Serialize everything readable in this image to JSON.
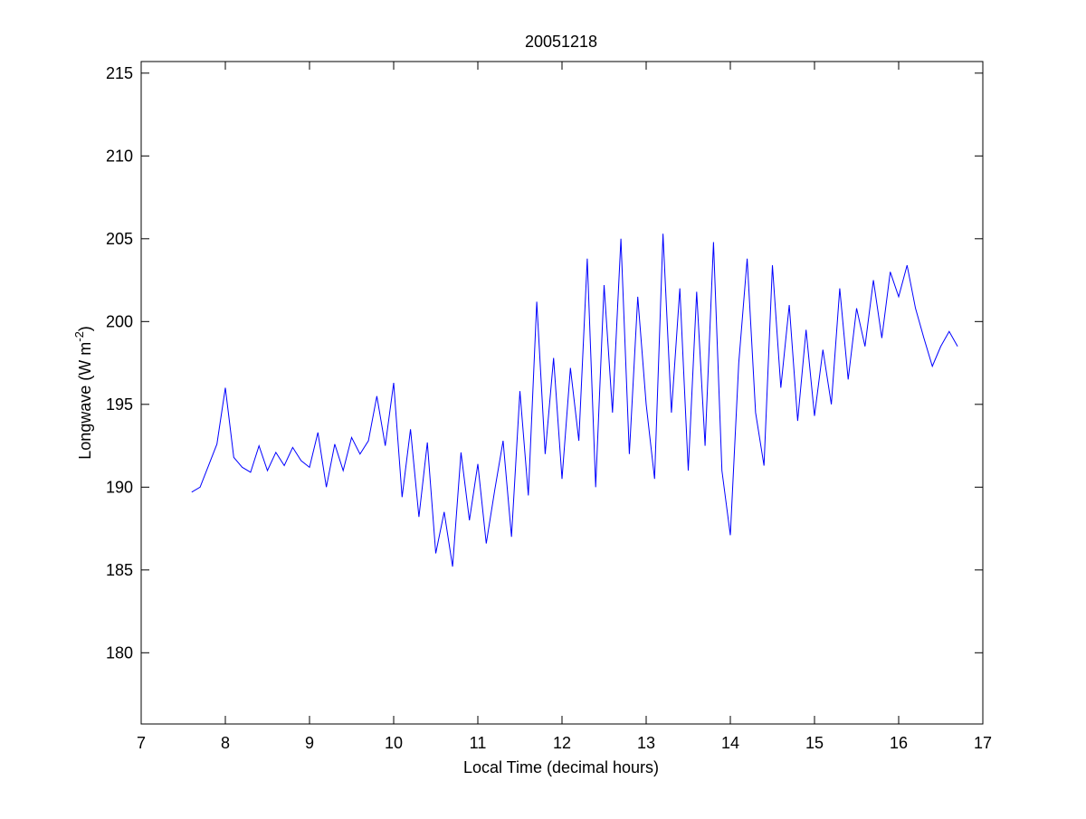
{
  "chart_data": {
    "type": "line",
    "title": "20051218",
    "xlabel": "Local Time (decimal hours)",
    "ylabel": "Longwave (W m",
    "ylabel_sup": "-2",
    "ylabel_end": ")",
    "xlim": [
      7,
      17
    ],
    "xticks": [
      7,
      8,
      9,
      10,
      11,
      12,
      13,
      14,
      15,
      16,
      17
    ],
    "ylim": [
      175.7,
      215.7
    ],
    "yticks": [
      180,
      185,
      190,
      195,
      200,
      205,
      210,
      215
    ],
    "grid": false,
    "x": [
      7.6,
      7.7,
      7.8,
      7.9,
      8.0,
      8.1,
      8.2,
      8.3,
      8.4,
      8.5,
      8.6,
      8.7,
      8.8,
      8.9,
      9.0,
      9.1,
      9.2,
      9.3,
      9.4,
      9.5,
      9.6,
      9.7,
      9.8,
      9.9,
      10.0,
      10.1,
      10.2,
      10.3,
      10.4,
      10.5,
      10.6,
      10.7,
      10.8,
      10.9,
      11.0,
      11.1,
      11.2,
      11.3,
      11.4,
      11.5,
      11.6,
      11.7,
      11.8,
      11.9,
      12.0,
      12.1,
      12.2,
      12.3,
      12.4,
      12.5,
      12.6,
      12.7,
      12.8,
      12.9,
      13.0,
      13.1,
      13.2,
      13.3,
      13.4,
      13.5,
      13.6,
      13.7,
      13.8,
      13.9,
      14.0,
      14.1,
      14.2,
      14.3,
      14.4,
      14.5,
      14.6,
      14.7,
      14.8,
      14.9,
      15.0,
      15.1,
      15.2,
      15.3,
      15.4,
      15.5,
      15.6,
      15.7,
      15.8,
      15.9,
      16.0,
      16.1,
      16.2,
      16.3,
      16.4,
      16.5,
      16.6,
      16.7
    ],
    "series": [
      {
        "color": "#0000ff",
        "values": [
          189.7,
          190.0,
          191.3,
          192.6,
          196.0,
          191.8,
          191.2,
          190.9,
          192.5,
          191.0,
          192.1,
          191.3,
          192.4,
          191.6,
          191.2,
          193.3,
          190.0,
          192.6,
          191.0,
          193.0,
          192.0,
          192.8,
          195.5,
          192.5,
          196.3,
          189.4,
          193.5,
          188.2,
          192.7,
          186.0,
          188.5,
          185.2,
          192.1,
          188.0,
          191.4,
          186.6,
          189.8,
          192.8,
          187.0,
          195.8,
          189.5,
          201.2,
          192.0,
          197.8,
          190.5,
          197.2,
          192.8,
          203.8,
          190.0,
          202.2,
          194.5,
          205.0,
          192.0,
          201.5,
          195.0,
          190.5,
          205.3,
          194.5,
          202.0,
          191.0,
          201.8,
          192.5,
          204.8,
          191.0,
          187.1,
          197.5,
          203.8,
          194.5,
          191.3,
          203.4,
          196.0,
          201.0,
          194.0,
          199.5,
          194.3,
          198.3,
          195.0,
          202.0,
          196.5,
          200.8,
          198.5,
          202.5,
          199.0,
          203.0,
          201.5,
          203.4,
          200.8,
          199.0,
          197.3,
          198.5,
          199.4,
          198.5
        ]
      }
    ]
  }
}
